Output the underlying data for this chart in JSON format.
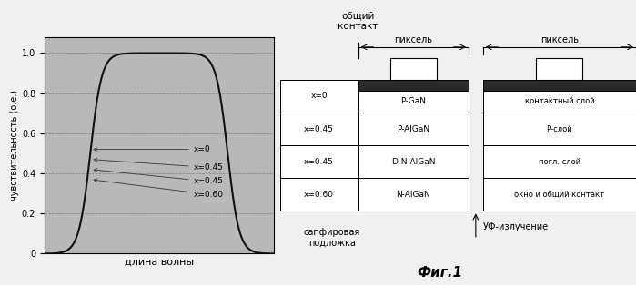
{
  "fig_title": "Фиг.1",
  "graph_ylabel": "чувствительность (о.е.)",
  "graph_xlabel": "длина волны",
  "graph_bg": "#b8b8b8",
  "curve_color": "#111111",
  "graph_yticks": [
    0,
    0.2,
    0.4,
    0.6,
    0.8,
    1.0
  ],
  "pixel_label": "пиксель",
  "common_contact_label": "общий\nконтакт",
  "sapphire_label": "сапфировая\nподложка",
  "uv_label": "УФ-излучение",
  "left_col_labels": [
    "x=0",
    "x=0.45",
    "x=0.45",
    "x=0.60"
  ],
  "middle_col_labels": [
    "P-GaN",
    "P-AlGaN",
    "D N-AlGaN",
    "N-AlGaN"
  ],
  "right_col_labels": [
    "контактный слой",
    "Р-слой",
    "погл. слой",
    "окно и общий контакт"
  ],
  "dark_bar_color": "#2a2a2a",
  "white_color": "#ffffff",
  "bg_color": "#f0f0f0"
}
